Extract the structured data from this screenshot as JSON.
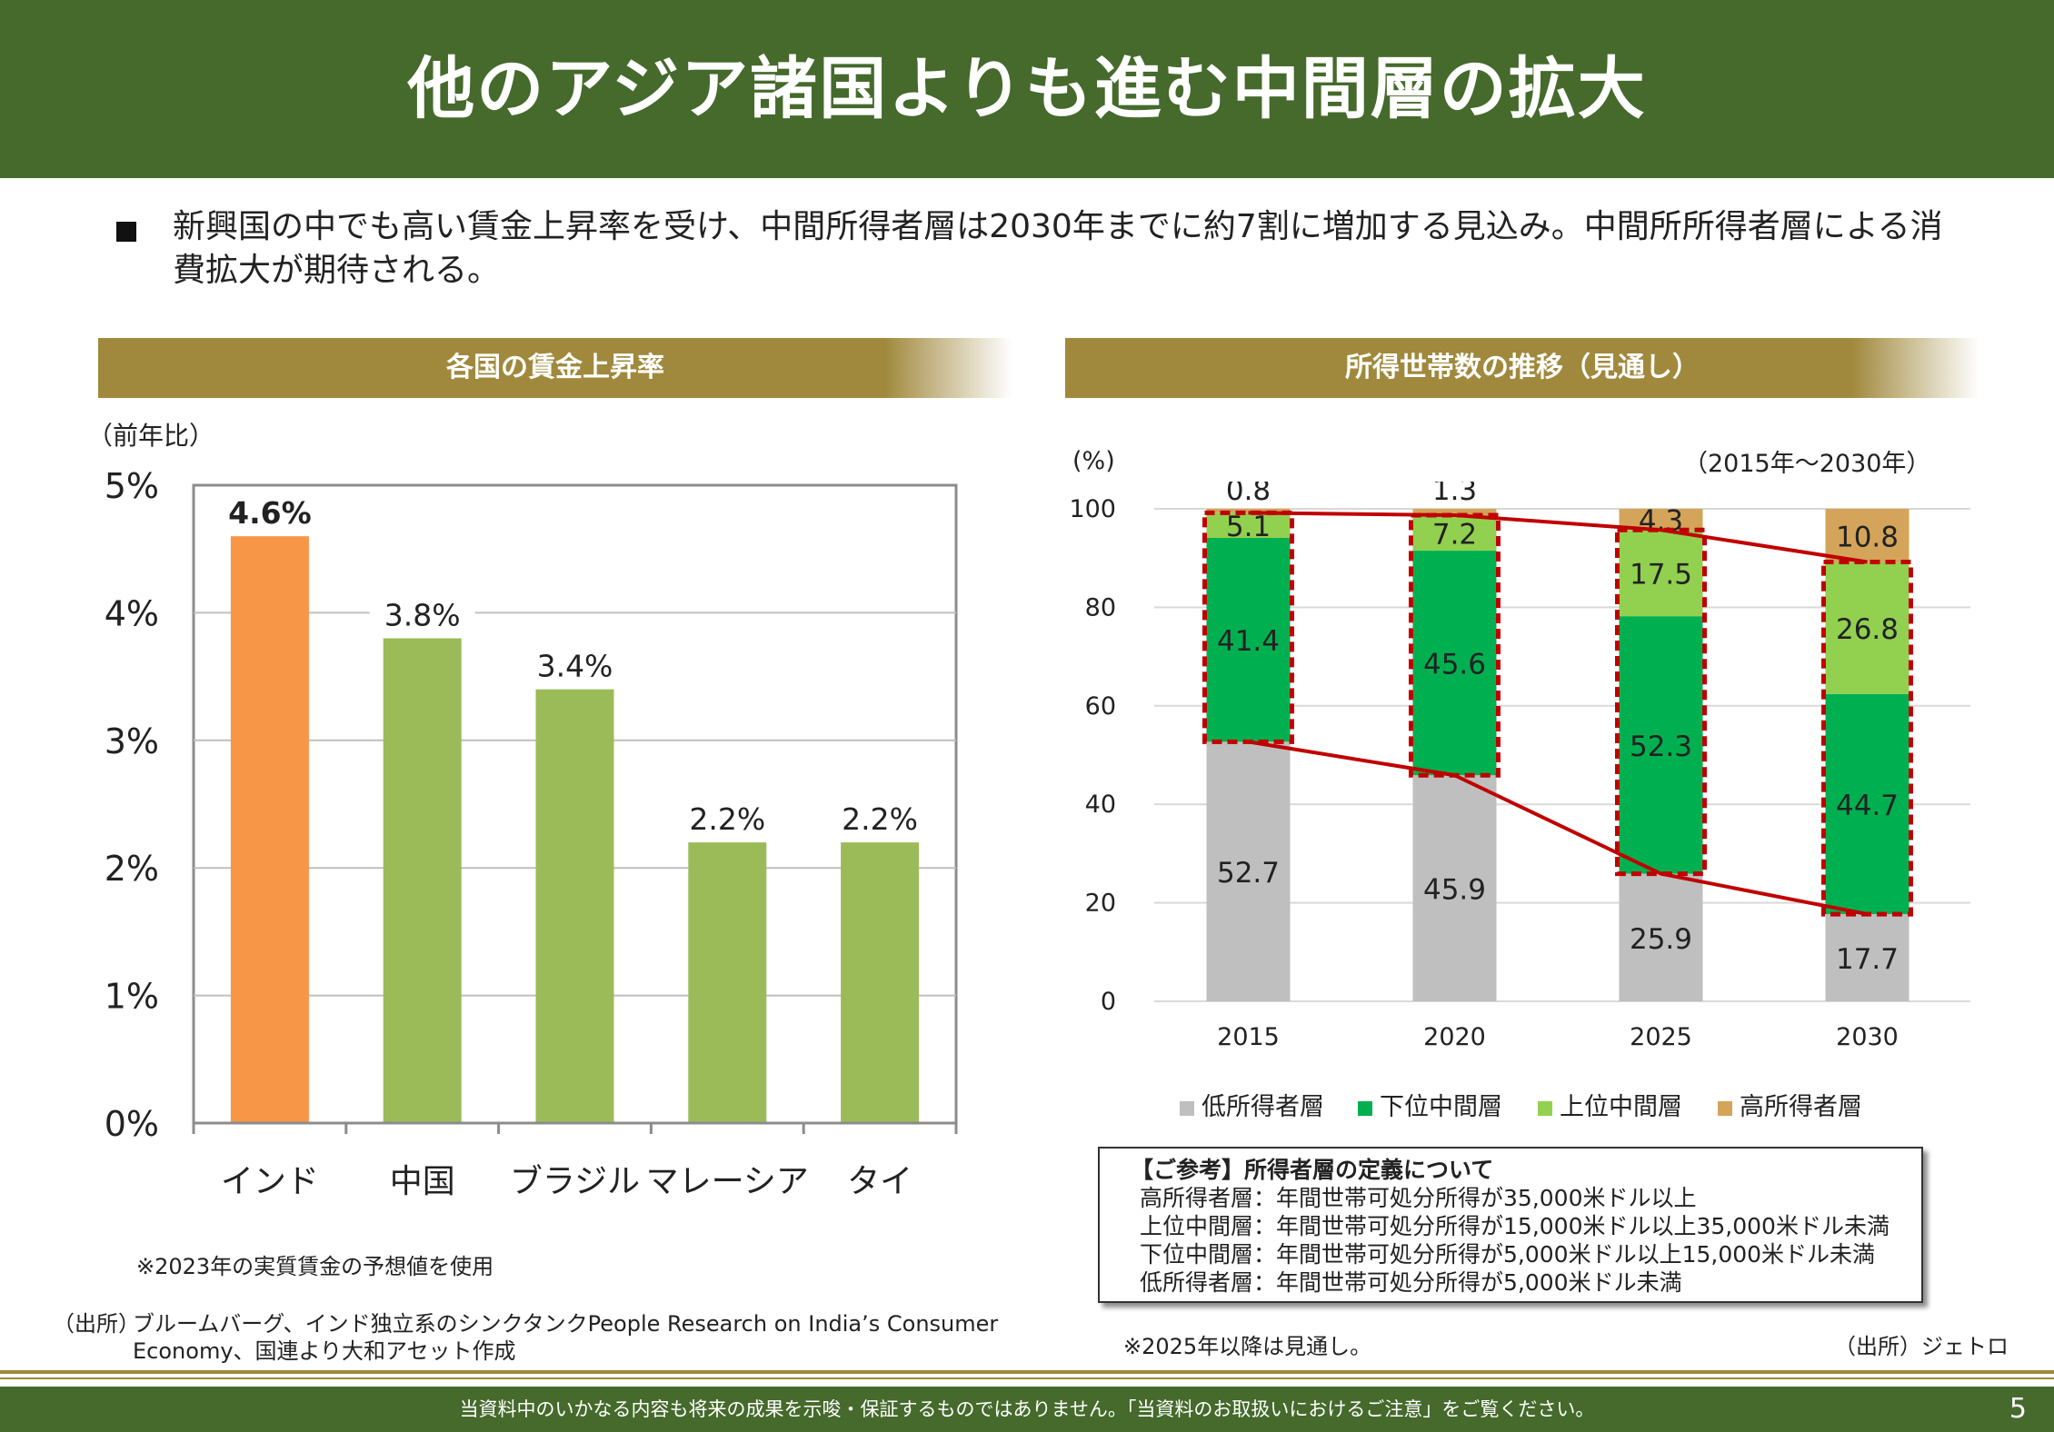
{
  "title": "他のアジア諸国よりも進む中間層の拡大",
  "bullet": "新興国の中でも高い賃金上昇率を受け、中間所得者層は2030年までに約7割に増加する見込み。中間所所得者層による消費拡大が期待される。",
  "left_panel": {
    "band": "各国の賃金上昇率",
    "unit": "（前年比）",
    "note": "※2023年の実質賃金の予想値を使用",
    "source_label": "（出所）",
    "source_text": "ブルームバーグ、インド独立系のシンクタンクPeople Research on India’s Consumer Economy、国連より大和アセット作成"
  },
  "right_panel": {
    "band": "所得世帯数の推移（見通し）",
    "unit": "(%)",
    "period": "（2015年～2030年）",
    "note": "※2025年以降は見通し。",
    "source": "（出所）ジェトロ",
    "legend": [
      "低所得者層",
      "下位中間層",
      "上位中間層",
      "高所得者層"
    ]
  },
  "definition_box": {
    "title": "【ご参考】所得者層の定義について",
    "rows": [
      "高所得者層：年間世帯可処分所得が35,000米ドル以上",
      "上位中間層：年間世帯可処分所得が15,000米ドル以上35,000米ドル未満",
      "下位中間層：年間世帯可処分所得が5,000米ドル以上15,000米ドル未満",
      "低所得者層：年間世帯可処分所得が5,000米ドル未満"
    ]
  },
  "footer": {
    "disclaimer": "当資料中のいかなる内容も将来の成果を示唆・保証するものではありません。「当資料のお取扱いにおけるご注意」をご覧ください。",
    "page": "5"
  },
  "colors": {
    "header": "#456a2c",
    "band": "#a0893d",
    "india": "#f79646",
    "other": "#9bbb59",
    "low": "#bfbfbf",
    "lower_middle": "#00b050",
    "upper_middle": "#92d050",
    "high": "#d4a45a",
    "line": "#c00000"
  },
  "chart_data": [
    {
      "type": "bar",
      "categories": [
        "インド",
        "中国",
        "ブラジル",
        "マレーシア",
        "タイ"
      ],
      "values": [
        4.6,
        3.8,
        3.4,
        2.2,
        2.2
      ],
      "data_labels": [
        "4.6%",
        "3.8%",
        "3.4%",
        "2.2%",
        "2.2%"
      ],
      "yticks": [
        "0%",
        "1%",
        "2%",
        "3%",
        "4%",
        "5%"
      ],
      "ylim": [
        0,
        5
      ],
      "grid": true
    },
    {
      "type": "bar",
      "stacked": true,
      "categories": [
        "2015",
        "2020",
        "2025",
        "2030"
      ],
      "yticks": [
        "0",
        "20",
        "40",
        "60",
        "80",
        "100"
      ],
      "ylim": [
        0,
        100
      ],
      "grid": true,
      "series": [
        {
          "name": "低所得者層",
          "values": [
            52.7,
            45.9,
            25.9,
            17.7
          ]
        },
        {
          "name": "下位中間層",
          "values": [
            41.4,
            45.6,
            52.3,
            44.7
          ]
        },
        {
          "name": "上位中間層",
          "values": [
            5.1,
            7.2,
            17.5,
            26.8
          ]
        },
        {
          "name": "高所得者層",
          "values": [
            0.8,
            1.3,
            4.3,
            10.8
          ]
        }
      ],
      "legend_position": "bottom"
    }
  ]
}
